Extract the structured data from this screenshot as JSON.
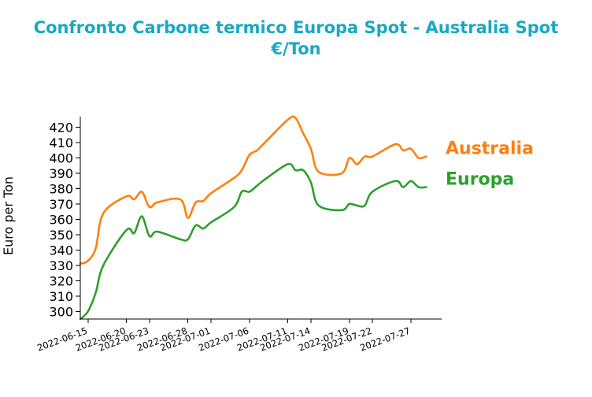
{
  "chart_data": {
    "type": "line",
    "title_lines": [
      "Confronto Carbone termico Europa Spot - Australia Spot",
      "€/Ton"
    ],
    "xlabel": "",
    "ylabel": "Euro per Ton",
    "ylim": [
      295,
      427
    ],
    "yticks": [
      300,
      310,
      320,
      330,
      340,
      350,
      360,
      370,
      380,
      390,
      400,
      410,
      420
    ],
    "xlim": [
      "2022-06-14",
      "2022-07-31"
    ],
    "xticks": [
      "2022-06-15",
      "2022-06-20",
      "2022-06-23",
      "2022-06-28",
      "2022-07-01",
      "2022-07-06",
      "2022-07-11",
      "2022-07-14",
      "2022-07-19",
      "2022-07-22",
      "2022-07-27"
    ],
    "legend": "right-end labels",
    "series": [
      {
        "name": "Australia",
        "color": "#ff7f0e",
        "x": [
          "2022-06-14",
          "2022-06-15",
          "2022-06-16",
          "2022-06-17",
          "2022-06-20",
          "2022-06-21",
          "2022-06-22",
          "2022-06-23",
          "2022-06-24",
          "2022-06-27",
          "2022-06-28",
          "2022-06-29",
          "2022-06-30",
          "2022-07-01",
          "2022-07-04",
          "2022-07-05",
          "2022-07-06",
          "2022-07-07",
          "2022-07-08",
          "2022-07-11",
          "2022-07-12",
          "2022-07-13",
          "2022-07-14",
          "2022-07-15",
          "2022-07-18",
          "2022-07-19",
          "2022-07-20",
          "2022-07-21",
          "2022-07-22",
          "2022-07-25",
          "2022-07-26",
          "2022-07-27",
          "2022-07-28",
          "2022-07-29"
        ],
        "values": [
          331,
          333,
          341,
          364,
          375,
          373,
          378,
          368,
          371,
          373,
          361,
          371,
          372,
          377,
          387,
          392,
          402,
          405,
          410,
          425,
          426,
          416,
          406,
          391,
          390,
          400,
          396,
          401,
          401,
          409,
          405,
          406,
          400,
          401
        ]
      },
      {
        "name": "Europa",
        "color": "#2ca02c",
        "x": [
          "2022-06-14",
          "2022-06-15",
          "2022-06-16",
          "2022-06-17",
          "2022-06-20",
          "2022-06-21",
          "2022-06-22",
          "2022-06-23",
          "2022-06-24",
          "2022-06-27",
          "2022-06-28",
          "2022-06-29",
          "2022-06-30",
          "2022-07-01",
          "2022-07-04",
          "2022-07-05",
          "2022-07-06",
          "2022-07-07",
          "2022-07-08",
          "2022-07-11",
          "2022-07-12",
          "2022-07-13",
          "2022-07-14",
          "2022-07-15",
          "2022-07-18",
          "2022-07-19",
          "2022-07-20",
          "2022-07-21",
          "2022-07-22",
          "2022-07-25",
          "2022-07-26",
          "2022-07-27",
          "2022-07-28",
          "2022-07-29"
        ],
        "values": [
          295,
          300,
          312,
          330,
          353,
          351,
          362,
          349,
          352,
          347,
          347,
          356,
          354,
          358,
          368,
          378,
          378,
          382,
          386,
          396,
          392,
          392,
          384,
          369,
          366,
          370,
          369,
          369,
          378,
          385,
          381,
          385,
          381,
          381
        ]
      }
    ]
  }
}
